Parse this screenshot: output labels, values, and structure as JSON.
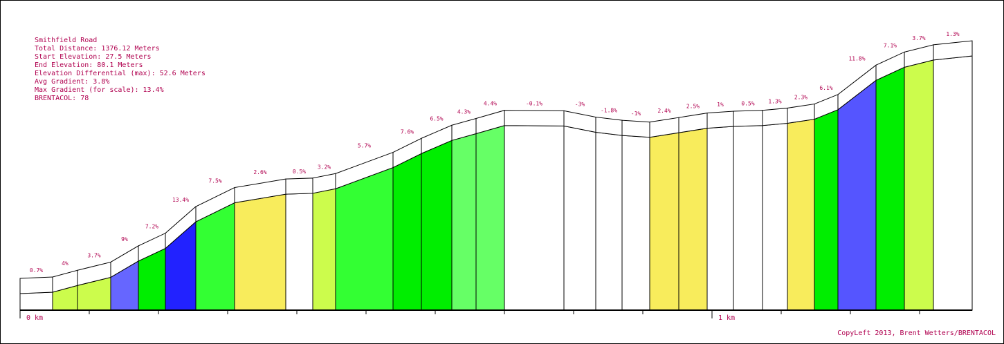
{
  "info": {
    "title": "Smithfield Road",
    "total_distance": "Total Distance: 1376.12 Meters",
    "start_elevation": "Start Elevation: 27.5 Meters",
    "end_elevation": "End Elevation: 80.1 Meters",
    "elevation_differential": "Elevation Differential (max): 52.6 Meters",
    "avg_gradient": "Avg Gradient: 3.8%",
    "max_gradient": "Max Gradient (for scale): 13.4%",
    "brentacol": "BRENTACOL: 78"
  },
  "copyleft": "CopyLeft 2013, Brent Wetters/BRENTACOL",
  "colors": {
    "text": "#b0004f",
    "outline": "#000000",
    "flat_or_descent": "#ffffff",
    "yellow": "#f8ec5c",
    "light_green": "#ccfc4c",
    "bright_green": "#33ff33",
    "green": "#00ee00",
    "mint_green": "#66ff66",
    "light_blue": "#6666ff",
    "blue": "#2222ff",
    "periwinkle": "#5555ff"
  },
  "chart_data": {
    "type": "area",
    "title": "Smithfield Road",
    "xlabel": "",
    "ylabel": "",
    "x_unit": "km",
    "xlim": [
      0,
      1.37612
    ],
    "x_tick_labels": [
      {
        "x": 0,
        "label": "0 km"
      },
      {
        "x": 1,
        "label": "1 km"
      }
    ],
    "grid": false,
    "segments": [
      {
        "x0": 0.0,
        "x1": 0.047,
        "elev0": 27.5,
        "elev1": 27.8,
        "gradient_label": "0.7%",
        "color": "#ffffff"
      },
      {
        "x0": 0.047,
        "x1": 0.083,
        "elev0": 27.8,
        "elev1": 29.3,
        "gradient_label": "4%",
        "color": "#ccfc4c"
      },
      {
        "x0": 0.083,
        "x1": 0.131,
        "elev0": 29.3,
        "elev1": 31.1,
        "gradient_label": "3.7%",
        "color": "#ccfc4c"
      },
      {
        "x0": 0.131,
        "x1": 0.171,
        "elev0": 31.1,
        "elev1": 34.7,
        "gradient_label": "9%",
        "color": "#6666ff"
      },
      {
        "x0": 0.171,
        "x1": 0.21,
        "elev0": 34.7,
        "elev1": 37.5,
        "gradient_label": "7.2%",
        "color": "#00ee00"
      },
      {
        "x0": 0.21,
        "x1": 0.254,
        "elev0": 37.5,
        "elev1": 43.4,
        "gradient_label": "13.4%",
        "color": "#2222ff"
      },
      {
        "x0": 0.254,
        "x1": 0.31,
        "elev0": 43.4,
        "elev1": 47.6,
        "gradient_label": "7.5%",
        "color": "#33ff33"
      },
      {
        "x0": 0.31,
        "x1": 0.384,
        "elev0": 47.6,
        "elev1": 49.5,
        "gradient_label": "2.6%",
        "color": "#f8ec5c"
      },
      {
        "x0": 0.384,
        "x1": 0.423,
        "elev0": 49.5,
        "elev1": 49.7,
        "gradient_label": "0.5%",
        "color": "#ffffff"
      },
      {
        "x0": 0.423,
        "x1": 0.456,
        "elev0": 49.7,
        "elev1": 50.7,
        "gradient_label": "3.2%",
        "color": "#ccfc4c"
      },
      {
        "x0": 0.456,
        "x1": 0.539,
        "elev0": 50.7,
        "elev1": 55.4,
        "gradient_label": "5.7%",
        "color": "#33ff33"
      },
      {
        "x0": 0.539,
        "x1": 0.58,
        "elev0": 55.4,
        "elev1": 58.5,
        "gradient_label": "7.6%",
        "color": "#00ee00"
      },
      {
        "x0": 0.58,
        "x1": 0.624,
        "elev0": 58.5,
        "elev1": 61.4,
        "gradient_label": "6.5%",
        "color": "#00ee00"
      },
      {
        "x0": 0.624,
        "x1": 0.659,
        "elev0": 61.4,
        "elev1": 62.9,
        "gradient_label": "4.3%",
        "color": "#66ff66"
      },
      {
        "x0": 0.659,
        "x1": 0.7,
        "elev0": 62.9,
        "elev1": 64.7,
        "gradient_label": "4.4%",
        "color": "#66ff66"
      },
      {
        "x0": 0.7,
        "x1": 0.786,
        "elev0": 64.7,
        "elev1": 64.6,
        "gradient_label": "-0.1%",
        "color": "#ffffff"
      },
      {
        "x0": 0.786,
        "x1": 0.832,
        "elev0": 64.6,
        "elev1": 63.2,
        "gradient_label": "-3%",
        "color": "#ffffff"
      },
      {
        "x0": 0.832,
        "x1": 0.87,
        "elev0": 63.2,
        "elev1": 62.5,
        "gradient_label": "-1.8%",
        "color": "#ffffff"
      },
      {
        "x0": 0.87,
        "x1": 0.91,
        "elev0": 62.5,
        "elev1": 62.1,
        "gradient_label": "-1%",
        "color": "#ffffff"
      },
      {
        "x0": 0.91,
        "x1": 0.952,
        "elev0": 62.1,
        "elev1": 63.1,
        "gradient_label": "2.4%",
        "color": "#f8ec5c"
      },
      {
        "x0": 0.952,
        "x1": 0.993,
        "elev0": 63.1,
        "elev1": 64.1,
        "gradient_label": "2.5%",
        "color": "#f8ec5c"
      },
      {
        "x0": 0.993,
        "x1": 1.031,
        "elev0": 64.1,
        "elev1": 64.5,
        "gradient_label": "1%",
        "color": "#ffffff"
      },
      {
        "x0": 1.031,
        "x1": 1.073,
        "elev0": 64.5,
        "elev1": 64.7,
        "gradient_label": "0.5%",
        "color": "#ffffff"
      },
      {
        "x0": 1.073,
        "x1": 1.109,
        "elev0": 64.7,
        "elev1": 65.2,
        "gradient_label": "1.3%",
        "color": "#ffffff"
      },
      {
        "x0": 1.109,
        "x1": 1.148,
        "elev0": 65.2,
        "elev1": 66.1,
        "gradient_label": "2.3%",
        "color": "#f8ec5c"
      },
      {
        "x0": 1.148,
        "x1": 1.182,
        "elev0": 66.1,
        "elev1": 68.2,
        "gradient_label": "6.1%",
        "color": "#00ee00"
      },
      {
        "x0": 1.182,
        "x1": 1.237,
        "elev0": 68.2,
        "elev1": 74.7,
        "gradient_label": "11.8%",
        "color": "#5555ff"
      },
      {
        "x0": 1.237,
        "x1": 1.278,
        "elev0": 74.7,
        "elev1": 77.6,
        "gradient_label": "7.1%",
        "color": "#00ee00"
      },
      {
        "x0": 1.278,
        "x1": 1.32,
        "elev0": 77.6,
        "elev1": 79.2,
        "gradient_label": "3.7%",
        "color": "#ccfc4c"
      },
      {
        "x0": 1.32,
        "x1": 1.376,
        "elev0": 79.2,
        "elev1": 80.1,
        "gradient_label": "1.3%",
        "color": "#ffffff"
      }
    ]
  }
}
